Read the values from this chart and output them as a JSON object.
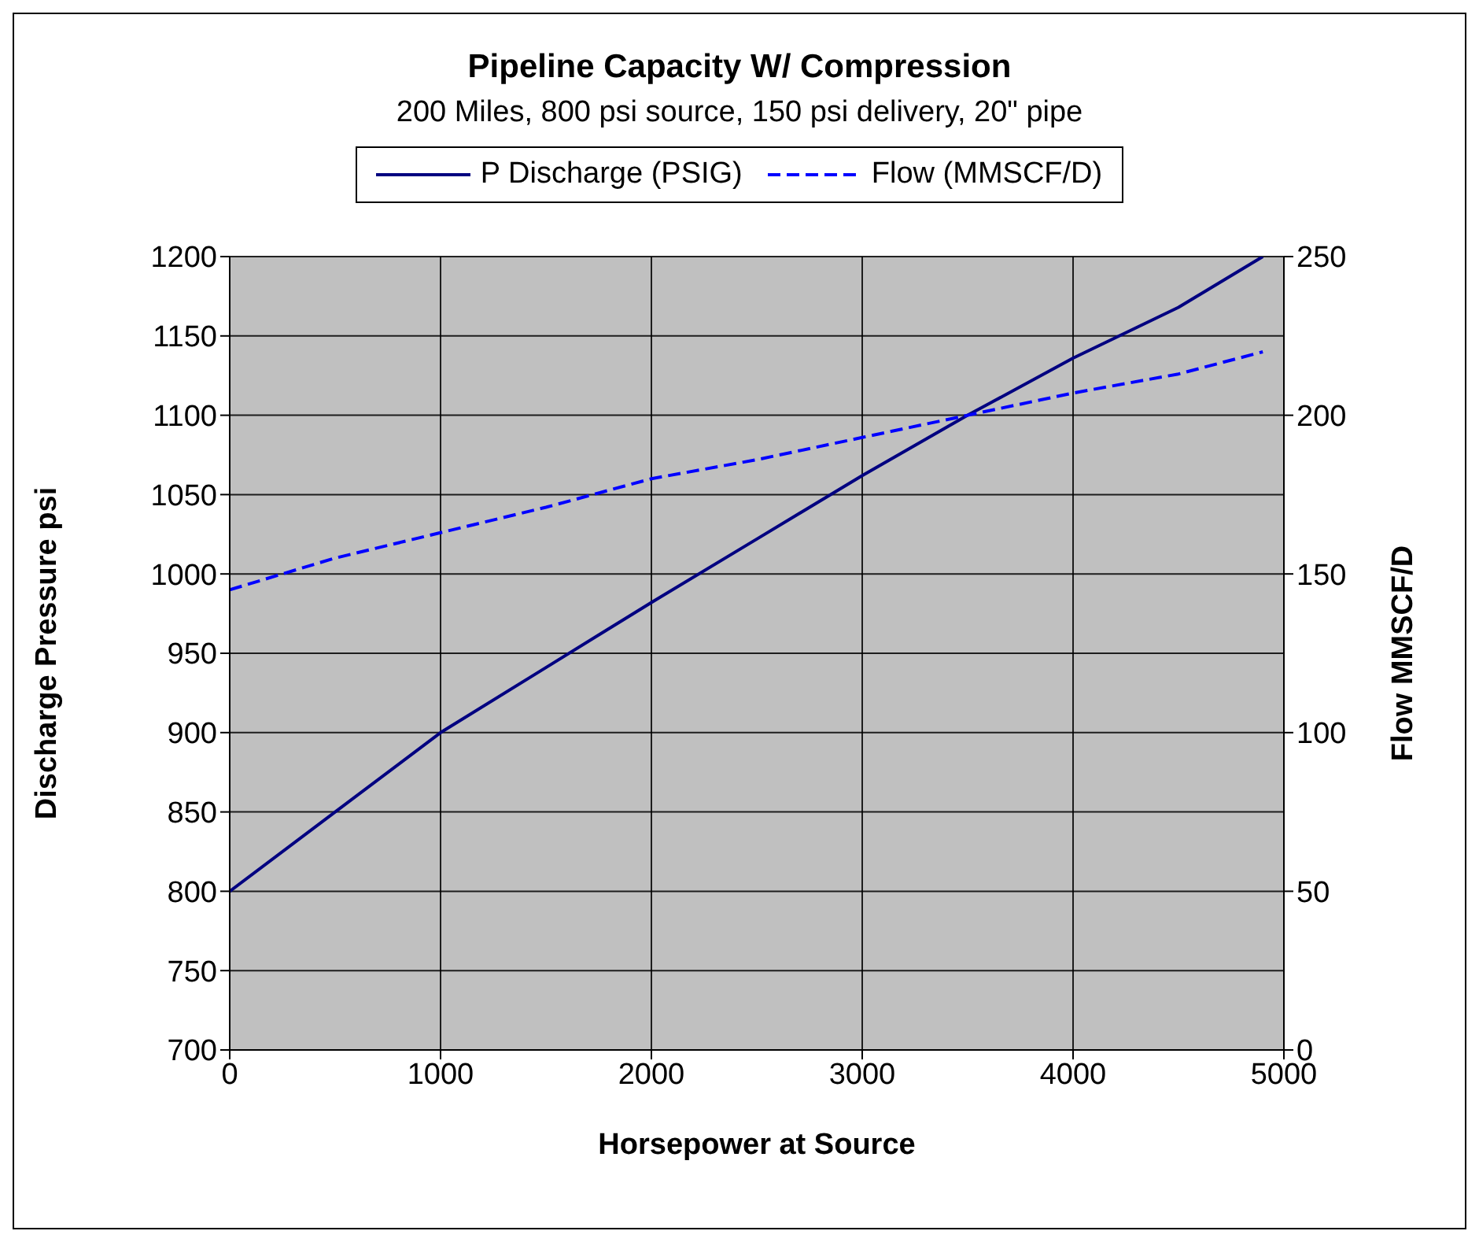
{
  "chart_data": {
    "type": "line",
    "title": "Pipeline Capacity W/ Compression",
    "subtitle": "200 Miles, 800 psi source, 150 psi delivery, 20\" pipe",
    "xlabel": "Horsepower at Source",
    "ylabel": "Discharge Pressure psi",
    "y2label": "Flow MMSCF/D",
    "x": [
      0,
      500,
      1000,
      1500,
      2000,
      2500,
      3000,
      3500,
      4000,
      4500,
      4900
    ],
    "series": [
      {
        "name": "P Discharge (PSIG)",
        "color": "#000080",
        "line_style": "solid",
        "values": [
          800,
          850,
          900,
          941,
          982,
          1022,
          1062,
          1100,
          1136,
          1168,
          1200
        ]
      },
      {
        "name": "Flow (MMSCF/D)",
        "color": "#0000ff",
        "line_style": "dashed",
        "axis": "y2",
        "values": [
          145,
          155,
          163,
          171,
          180,
          186,
          193,
          200,
          207,
          213,
          220
        ]
      }
    ],
    "xlim": [
      0,
      5000
    ],
    "xticks": [
      0,
      1000,
      2000,
      3000,
      4000,
      5000
    ],
    "ylim": [
      700,
      1200
    ],
    "yticks": [
      700,
      750,
      800,
      850,
      900,
      950,
      1000,
      1050,
      1100,
      1150,
      1200
    ],
    "y2lim": [
      0,
      250
    ],
    "y2ticks": [
      0,
      50,
      100,
      150,
      200,
      250
    ],
    "grid": true,
    "legend": "top",
    "marker": "none"
  }
}
